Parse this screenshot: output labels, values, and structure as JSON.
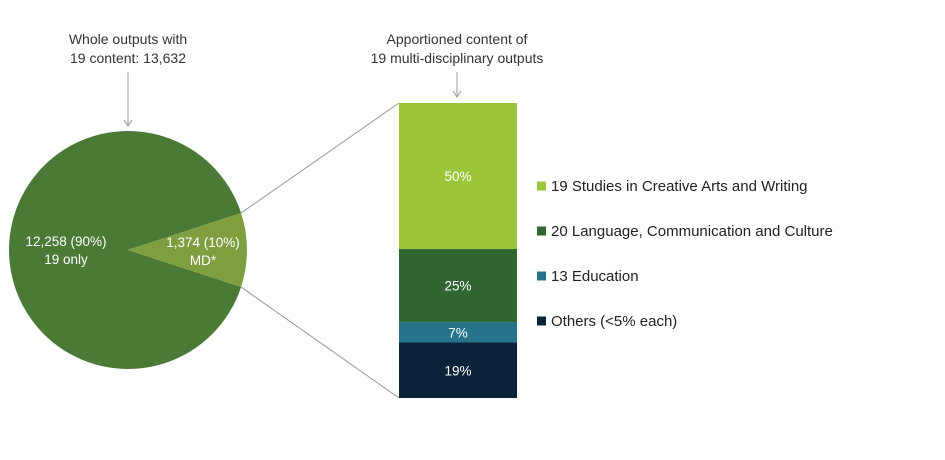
{
  "chart_data": [
    {
      "type": "pie",
      "title_lines": [
        "Whole outputs with",
        "19 content: 13,632"
      ],
      "total": 13632,
      "slices": [
        {
          "name": "19 only",
          "value": 12258,
          "percent": 90,
          "label_lines": [
            "12,258 (90%)",
            "19 only"
          ],
          "color": "#4a7a35"
        },
        {
          "name": "MD*",
          "value": 1374,
          "percent": 10,
          "label_lines": [
            "1,374 (10%)",
            "MD*"
          ],
          "color": "#7f9e40"
        }
      ]
    },
    {
      "type": "bar",
      "stacked": true,
      "title_lines": [
        "Apportioned content of",
        "19 multi-disciplinary outputs"
      ],
      "segments": [
        {
          "name": "19 Studies in Creative Arts and Writing",
          "value": 50,
          "label": "50%",
          "color": "#9bc63b"
        },
        {
          "name": "20 Language, Communication and Culture",
          "value": 25,
          "label": "25%",
          "color": "#2f6632"
        },
        {
          "name": "13 Education",
          "value": 7,
          "label": "7%",
          "color": "#27748a"
        },
        {
          "name": "Others (<5% each)",
          "value": 19,
          "label": "19%",
          "color": "#0b2339"
        }
      ],
      "legend": [
        {
          "label": "19 Studies in Creative Arts and Writing",
          "color": "#9bc63b"
        },
        {
          "label": "20 Language, Communication and Culture",
          "color": "#2f6632"
        },
        {
          "label": "13 Education",
          "color": "#27748a"
        },
        {
          "label": "Others (<5% each)",
          "color": "#0b2339"
        }
      ]
    }
  ]
}
